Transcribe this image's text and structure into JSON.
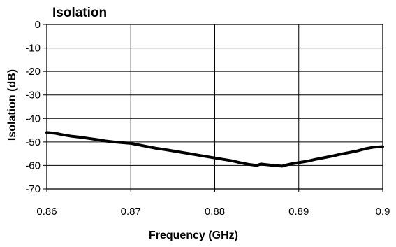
{
  "chart_data": {
    "type": "line",
    "title": "Isolation",
    "xlabel": "Frequency (GHz)",
    "ylabel": "Isolation (dB)",
    "xlim": [
      0.86,
      0.9
    ],
    "ylim": [
      -70,
      0
    ],
    "x_ticks": [
      0.86,
      0.87,
      0.88,
      0.89,
      0.9
    ],
    "x_tick_labels": [
      "0.86",
      "0.87",
      "0.88",
      "0.89",
      "0.9"
    ],
    "y_ticks": [
      0,
      -10,
      -20,
      -30,
      -40,
      -50,
      -60,
      -70
    ],
    "y_tick_labels": [
      "0",
      "-10",
      "-20",
      "-30",
      "-40",
      "-50",
      "-60",
      "-70"
    ],
    "grid": {
      "vertical": true,
      "horizontal": true
    },
    "legend": "none",
    "series": [
      {
        "x": [
          0.86,
          0.861,
          0.862,
          0.863,
          0.864,
          0.865,
          0.866,
          0.867,
          0.868,
          0.869,
          0.87,
          0.871,
          0.872,
          0.873,
          0.874,
          0.875,
          0.876,
          0.877,
          0.878,
          0.879,
          0.88,
          0.881,
          0.882,
          0.883,
          0.884,
          0.885,
          0.8855,
          0.886,
          0.887,
          0.888,
          0.8885,
          0.889,
          0.89,
          0.891,
          0.892,
          0.893,
          0.894,
          0.895,
          0.896,
          0.897,
          0.898,
          0.899,
          0.9
        ],
        "y": [
          -46,
          -46.3,
          -47,
          -47.6,
          -48,
          -48.5,
          -49,
          -49.6,
          -50,
          -50.3,
          -50.6,
          -51.3,
          -52,
          -52.7,
          -53.2,
          -53.8,
          -54.4,
          -55,
          -55.6,
          -56.2,
          -56.8,
          -57.4,
          -58,
          -58.8,
          -59.5,
          -60,
          -59.4,
          -59.6,
          -60,
          -60.3,
          -59.8,
          -59.4,
          -58.8,
          -58.2,
          -57.4,
          -56.7,
          -56,
          -55.2,
          -54.5,
          -53.8,
          -52.8,
          -52.2,
          -52
        ]
      }
    ]
  }
}
